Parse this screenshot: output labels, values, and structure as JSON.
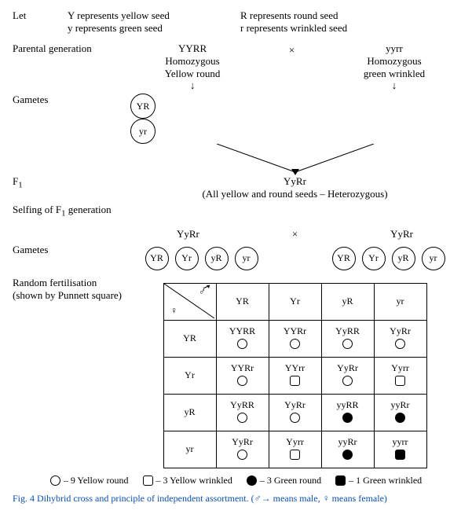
{
  "let": {
    "word": "Let",
    "Y": "Y represents yellow seed",
    "y": "y represents green seed",
    "R": "R represents round seed",
    "r": "r  represents wrinkled seed"
  },
  "labels": {
    "parental": "Parental generation",
    "gametes": "Gametes",
    "f1": "F",
    "f1sub": "1",
    "selfing": "Selfing of F",
    "selfingsub": "1",
    "selfingrest": " generation",
    "random": "Random fertilisation",
    "random2": "(shown by Punnett square)"
  },
  "parents": {
    "p1_geno": "YYRR",
    "p1_desc1": "Homozygous",
    "p1_desc2": "Yellow round",
    "cross": "×",
    "p2_geno": "yyrr",
    "p2_desc1": "Homozygous",
    "p2_desc2": "green wrinkled"
  },
  "gametesP": {
    "g1": "YR",
    "g2": "yr"
  },
  "f1": {
    "geno": "YyRr",
    "note": "(All yellow and round seeds – Heterozygous)"
  },
  "selfcross": {
    "p1": "YyRr",
    "cross": "×",
    "p2": "YyRr"
  },
  "gametesF1": [
    "YR",
    "Yr",
    "yR",
    "yr"
  ],
  "punnett": {
    "head": [
      "YR",
      "Yr",
      "yR",
      "yr"
    ],
    "side": [
      "YR",
      "Yr",
      "yR",
      "yr"
    ],
    "cells": [
      [
        {
          "g": "YYRR",
          "p": "yr"
        },
        {
          "g": "YYRr",
          "p": "yr"
        },
        {
          "g": "YyRR",
          "p": "yr"
        },
        {
          "g": "YyRr",
          "p": "yr"
        }
      ],
      [
        {
          "g": "YYRr",
          "p": "yr"
        },
        {
          "g": "YYrr",
          "p": "yw"
        },
        {
          "g": "YyRr",
          "p": "yr"
        },
        {
          "g": "Yyrr",
          "p": "yw"
        }
      ],
      [
        {
          "g": "YyRR",
          "p": "yr"
        },
        {
          "g": "YyRr",
          "p": "yr"
        },
        {
          "g": "yyRR",
          "p": "gr"
        },
        {
          "g": "yyRr",
          "p": "gr"
        }
      ],
      [
        {
          "g": "YyRr",
          "p": "yr"
        },
        {
          "g": "Yyrr",
          "p": "yw"
        },
        {
          "g": "yyRr",
          "p": "gr"
        },
        {
          "g": "yyrr",
          "p": "gw"
        }
      ]
    ]
  },
  "legend": {
    "yr": "– 9 Yellow round",
    "yw": "– 3 Yellow wrinkled",
    "gr": "– 3 Green round",
    "gw": "– 1 Green wrinkled"
  },
  "caption": {
    "main": "Fig. 4 Dihybrid cross and principle of independent assortment. (",
    "male": " means male, ",
    "female": " means female)"
  },
  "symbols": {
    "male": "♂",
    "female": "♀"
  },
  "colors": {
    "caption": "#0a4fae"
  }
}
